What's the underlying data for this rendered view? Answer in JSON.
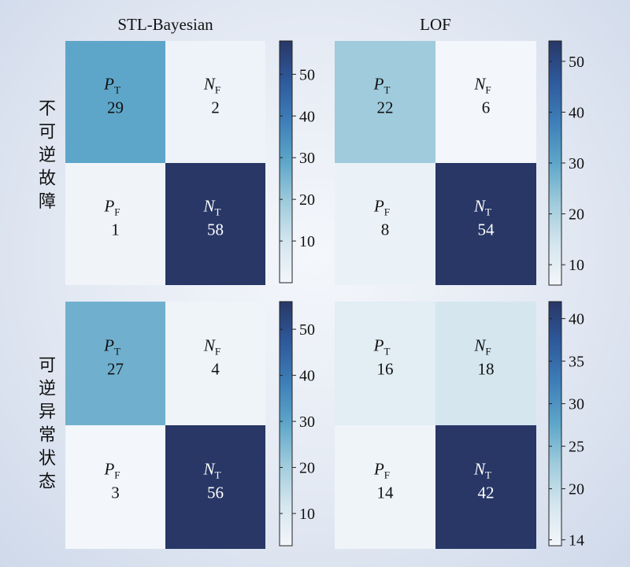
{
  "chart_data": [
    {
      "type": "heatmap",
      "title": "STL-Bayesian",
      "ylabel": "不可逆故障",
      "cells": [
        {
          "label": "P",
          "sub": "T",
          "value": 29
        },
        {
          "label": "N",
          "sub": "F",
          "value": 2
        },
        {
          "label": "P",
          "sub": "F",
          "value": 1
        },
        {
          "label": "N",
          "sub": "T",
          "value": 58
        }
      ],
      "colorbar": {
        "min": 0,
        "max": 58,
        "ticks": [
          10,
          20,
          30,
          40,
          50
        ]
      }
    },
    {
      "type": "heatmap",
      "title": "LOF",
      "ylabel": "",
      "cells": [
        {
          "label": "P",
          "sub": "T",
          "value": 22
        },
        {
          "label": "N",
          "sub": "F",
          "value": 6
        },
        {
          "label": "P",
          "sub": "F",
          "value": 8
        },
        {
          "label": "N",
          "sub": "T",
          "value": 54
        }
      ],
      "colorbar": {
        "min": 6,
        "max": 54,
        "ticks": [
          10,
          20,
          30,
          40,
          50
        ]
      }
    },
    {
      "type": "heatmap",
      "title": "",
      "ylabel": "可逆异常状态",
      "cells": [
        {
          "label": "P",
          "sub": "T",
          "value": 27
        },
        {
          "label": "N",
          "sub": "F",
          "value": 4
        },
        {
          "label": "P",
          "sub": "F",
          "value": 3
        },
        {
          "label": "N",
          "sub": "T",
          "value": 56
        }
      ],
      "colorbar": {
        "min": 3,
        "max": 56,
        "ticks": [
          10,
          20,
          30,
          40,
          50
        ]
      }
    },
    {
      "type": "heatmap",
      "title": "",
      "ylabel": "",
      "cells": [
        {
          "label": "P",
          "sub": "T",
          "value": 16
        },
        {
          "label": "N",
          "sub": "F",
          "value": 18
        },
        {
          "label": "P",
          "sub": "F",
          "value": 14
        },
        {
          "label": "N",
          "sub": "T",
          "value": 42
        }
      ],
      "colorbar": {
        "min": 13.3,
        "max": 42,
        "ticks": [
          14,
          20,
          25,
          30,
          35,
          40
        ]
      }
    }
  ],
  "colorscale": {
    "stops": [
      "#f3f6fa",
      "#d4e6ef",
      "#9fcbdc",
      "#5ea6c9",
      "#3e7fb8",
      "#2e5a9c",
      "#283766"
    ]
  }
}
